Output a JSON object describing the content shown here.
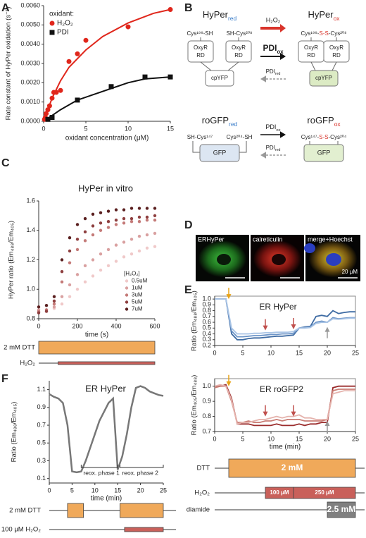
{
  "panels": [
    "A",
    "B",
    "C",
    "D",
    "E",
    "F"
  ],
  "chart_data": [
    {
      "type": "scatter",
      "xlabel": "oxidant concentration (μM)",
      "ylabel": "Rate constant of HyPer oxidation (s⁻¹)",
      "xlim": [
        0,
        15
      ],
      "xticks": [
        0,
        5,
        10,
        15
      ],
      "ylim": [
        0,
        0.006
      ],
      "yticks": [
        {
          "value": 0,
          "label": "0.0000"
        },
        {
          "value": 0.001,
          "label": "0.0010"
        },
        {
          "value": 0.002,
          "label": "0.0020"
        },
        {
          "value": 0.003,
          "label": "0.0030"
        },
        {
          "value": 0.004,
          "label": "0.0040"
        },
        {
          "value": 0.005,
          "label": "0.0050"
        },
        {
          "value": 0.006,
          "label": "0.0060"
        }
      ],
      "legend_title": "oxidant:",
      "legend": "upper left",
      "series": [
        {
          "name": "H₂O₂",
          "color": "#e0261b",
          "marker": "circle",
          "x": [
            0.1,
            0.2,
            0.3,
            0.5,
            0.7,
            1,
            1.2,
            1.5,
            2,
            3,
            4,
            5,
            10,
            15
          ],
          "values": [
            0.0001,
            0.0002,
            0.0004,
            0.0006,
            0.0008,
            0.0012,
            0.0015,
            0.0015,
            0.0016,
            0.0031,
            0.0035,
            0.0042,
            0.0049,
            0.0058
          ]
        },
        {
          "name": "PDI",
          "color": "#111111",
          "marker": "square",
          "x": [
            0.5,
            1,
            4,
            8,
            12,
            15
          ],
          "values": [
            0.0001,
            0.0002,
            0.0011,
            0.0018,
            0.0023,
            0.0023
          ]
        }
      ],
      "fits": [
        {
          "color": "#e0261b",
          "x": [
            0,
            0.5,
            1,
            2,
            3,
            5,
            7,
            10,
            13,
            15
          ],
          "values": [
            0,
            0.0006,
            0.0012,
            0.0021,
            0.0028,
            0.0037,
            0.0044,
            0.0051,
            0.0056,
            0.0058
          ]
        },
        {
          "color": "#111111",
          "x": [
            0,
            1,
            2,
            4,
            6,
            8,
            10,
            12,
            15
          ],
          "values": [
            0,
            0.0003,
            0.0006,
            0.0011,
            0.0014,
            0.0017,
            0.002,
            0.0022,
            0.0023
          ]
        }
      ]
    },
    {
      "type": "scatter",
      "title": "HyPer in vitro",
      "xlabel": "time (s)",
      "ylabel": "HyPer ratio (Em₄₈₈/Em₄₀₅)",
      "xlim": [
        0,
        600
      ],
      "xticks": [
        0,
        200,
        400,
        600
      ],
      "ylim": [
        0.8,
        1.6
      ],
      "yticks": [
        0.8,
        {
          "value": 1.0,
          "label": "1.0"
        },
        1.2,
        1.4,
        1.6
      ],
      "legend_title": "[H₂O₂]",
      "legend": "center right",
      "x": [
        0,
        40,
        80,
        120,
        160,
        200,
        240,
        280,
        320,
        360,
        400,
        440,
        480,
        520,
        560,
        600
      ],
      "series": [
        {
          "name": "0.5uM",
          "color": "#f0c9c9",
          "marker": "circle",
          "values": [
            0.86,
            0.86,
            0.87,
            0.9,
            0.95,
            1.0,
            1.05,
            1.09,
            1.13,
            1.16,
            1.19,
            1.22,
            1.24,
            1.26,
            1.28,
            1.29
          ]
        },
        {
          "name": "1uM",
          "color": "#d9a0a0",
          "marker": "circle",
          "values": [
            0.86,
            0.86,
            0.88,
            0.95,
            1.03,
            1.1,
            1.16,
            1.2,
            1.24,
            1.27,
            1.3,
            1.32,
            1.34,
            1.36,
            1.37,
            1.38
          ]
        },
        {
          "name": "3uM",
          "color": "#c47a78",
          "marker": "circle",
          "values": [
            0.85,
            0.86,
            0.9,
            1.05,
            1.18,
            1.27,
            1.33,
            1.37,
            1.4,
            1.42,
            1.44,
            1.45,
            1.46,
            1.46,
            1.47,
            1.47
          ]
        },
        {
          "name": "5uM",
          "color": "#8e3f3f",
          "marker": "circle",
          "values": [
            0.84,
            0.85,
            0.92,
            1.12,
            1.26,
            1.34,
            1.39,
            1.43,
            1.45,
            1.46,
            1.47,
            1.48,
            1.48,
            1.49,
            1.49,
            1.5
          ]
        },
        {
          "name": "7uM",
          "color": "#5a1f1f",
          "marker": "circle",
          "values": [
            0.88,
            0.89,
            0.95,
            1.2,
            1.35,
            1.44,
            1.48,
            1.51,
            1.52,
            1.53,
            1.54,
            1.54,
            1.55,
            1.55,
            1.55,
            1.55
          ]
        }
      ],
      "bars": [
        {
          "label": "2 mM DTT",
          "segments": [
            {
              "start": 0,
              "end": 600,
              "color": "#f0a95a"
            }
          ]
        },
        {
          "label": "H₂O₂",
          "segments": [
            {
              "start": 100,
              "end": 600,
              "color": "#c9605a"
            }
          ]
        }
      ]
    },
    {
      "type": "line",
      "title": "ER HyPer",
      "ylabel": "Ratio (Em₄₈₈/Em₄₀₅)",
      "xlim": [
        0,
        25
      ],
      "xticks": [
        0,
        5,
        10,
        15,
        20,
        25
      ],
      "ylim": [
        0.2,
        1.05
      ],
      "yticks": [
        0.2,
        0.3,
        0.4,
        0.5,
        0.6,
        0.7,
        0.8,
        0.9,
        {
          "value": 1.0,
          "label": "1.0"
        }
      ],
      "x": [
        0,
        1,
        2,
        3,
        4,
        5,
        6,
        7,
        8,
        9,
        10,
        11,
        12,
        13,
        14,
        15,
        16,
        17,
        18,
        19,
        20,
        21,
        22,
        23,
        24,
        25
      ],
      "series": [
        {
          "color": "#3e6ba3",
          "values": [
            1.0,
            1.0,
            1.0,
            0.4,
            0.3,
            0.3,
            0.32,
            0.33,
            0.33,
            0.34,
            0.35,
            0.36,
            0.36,
            0.37,
            0.38,
            0.5,
            0.52,
            0.53,
            0.7,
            0.72,
            0.7,
            0.8,
            0.75,
            0.77,
            0.78,
            0.78
          ]
        },
        {
          "color": "#6d95c8",
          "values": [
            1.0,
            1.0,
            1.0,
            0.45,
            0.35,
            0.35,
            0.36,
            0.37,
            0.37,
            0.38,
            0.39,
            0.39,
            0.4,
            0.4,
            0.41,
            0.5,
            0.51,
            0.52,
            0.6,
            0.62,
            0.6,
            0.68,
            0.66,
            0.67,
            0.68,
            0.68
          ]
        },
        {
          "color": "#a9c4e5",
          "values": [
            1.0,
            1.0,
            1.0,
            0.5,
            0.4,
            0.4,
            0.4,
            0.41,
            0.41,
            0.42,
            0.42,
            0.43,
            0.43,
            0.43,
            0.44,
            0.5,
            0.5,
            0.51,
            0.58,
            0.6,
            0.6,
            0.66,
            0.65,
            0.66,
            0.67,
            0.67
          ]
        }
      ],
      "arrows": [
        {
          "x": 2.5,
          "y": 1.0,
          "direction": "down",
          "color": "#e8a317"
        },
        {
          "x": 9,
          "y": 0.46,
          "direction": "down",
          "color": "#c0504d"
        },
        {
          "x": 14,
          "y": 0.48,
          "direction": "down",
          "color": "#c0504d"
        },
        {
          "x": 20,
          "y": 0.52,
          "direction": "up",
          "color": "#999999"
        }
      ]
    },
    {
      "type": "line",
      "title": "ER roGFP2",
      "xlabel": "time (min)",
      "ylabel": "Ratio (Em₄₀₅/Em₄₈₈)",
      "xlim": [
        0,
        25
      ],
      "xticks": [
        0,
        5,
        10,
        15,
        20,
        25
      ],
      "ylim": [
        0.7,
        1.05
      ],
      "yticks": [
        0.7,
        0.8,
        0.9,
        {
          "value": 1.0,
          "label": "1.0"
        }
      ],
      "x": [
        0,
        1,
        2,
        3,
        4,
        5,
        6,
        7,
        8,
        9,
        10,
        11,
        12,
        13,
        14,
        15,
        16,
        17,
        18,
        19,
        20,
        21,
        22,
        23,
        24,
        25
      ],
      "series": [
        {
          "color": "#9b2d2d",
          "values": [
            1.0,
            1.0,
            1.01,
            0.92,
            0.75,
            0.75,
            0.75,
            0.74,
            0.74,
            0.74,
            0.74,
            0.75,
            0.74,
            0.74,
            0.74,
            0.75,
            0.74,
            0.75,
            0.75,
            0.76,
            0.76,
            0.99,
            1.0,
            1.0,
            1.0,
            1.0
          ]
        },
        {
          "color": "#c97c74",
          "values": [
            0.99,
            1.0,
            1.0,
            0.9,
            0.76,
            0.76,
            0.77,
            0.76,
            0.76,
            0.77,
            0.77,
            0.78,
            0.77,
            0.78,
            0.78,
            0.78,
            0.77,
            0.77,
            0.77,
            0.77,
            0.78,
            0.97,
            0.98,
            0.98,
            0.98,
            0.98
          ]
        },
        {
          "color": "#e5b3ad",
          "values": [
            1.0,
            1.01,
            1.0,
            0.91,
            0.75,
            0.76,
            0.76,
            0.77,
            0.78,
            0.78,
            0.79,
            0.8,
            0.79,
            0.8,
            0.8,
            0.81,
            0.79,
            0.79,
            0.78,
            0.78,
            0.78,
            0.95,
            0.96,
            0.97,
            0.97,
            0.97
          ]
        }
      ],
      "arrows": [
        {
          "x": 2.5,
          "y": 1.0,
          "direction": "down",
          "color": "#e8a317"
        },
        {
          "x": 9,
          "y": 0.8,
          "direction": "down",
          "color": "#c0504d"
        },
        {
          "x": 14,
          "y": 0.8,
          "direction": "down",
          "color": "#c0504d"
        },
        {
          "x": 20,
          "y": 0.77,
          "direction": "up",
          "color": "#999999"
        }
      ],
      "bars": [
        {
          "label": "DTT",
          "segments": [
            {
              "start": 2.5,
              "end": 25,
              "color": "#f0a95a",
              "text": "2 mM"
            }
          ]
        },
        {
          "label": "H₂O₂",
          "segments": [
            {
              "start": 9,
              "end": 14,
              "color": "#c9605a",
              "text": "100 μM"
            },
            {
              "start": 14,
              "end": 25,
              "color": "#c9605a",
              "text": "250 μM"
            }
          ]
        },
        {
          "label": "diamide",
          "segments": [
            {
              "start": 20,
              "end": 25,
              "color": "#808080",
              "text": "2.5 mM"
            }
          ]
        }
      ]
    },
    {
      "type": "line",
      "title": "ER HyPer",
      "xlabel": "time (min)",
      "ylabel": "Ratio (Em₄₈₈/Em₄₀₅)",
      "xlim": [
        0,
        25
      ],
      "xticks": [
        0,
        5,
        10,
        15,
        20,
        25
      ],
      "ylim": [
        0.05,
        1.2
      ],
      "yticks": [
        0.1,
        0.3,
        0.5,
        0.7,
        0.9,
        1.1
      ],
      "x": [
        0,
        1,
        2,
        3,
        4,
        5,
        6,
        7,
        8,
        9,
        10,
        11,
        12,
        13,
        14,
        15,
        16,
        17,
        18,
        19,
        20,
        21,
        22,
        23,
        24,
        25
      ],
      "series": [
        {
          "color": "#777777",
          "values": [
            1.05,
            1.02,
            1.0,
            0.95,
            0.7,
            0.18,
            0.17,
            0.18,
            0.3,
            0.45,
            0.6,
            0.75,
            0.85,
            0.95,
            1.0,
            0.2,
            0.35,
            0.6,
            0.9,
            1.12,
            1.14,
            1.12,
            1.08,
            1.06,
            1.04,
            1.03
          ]
        }
      ],
      "annotations": [
        {
          "text": "reox. phase 1",
          "start": 7,
          "end": 15
        },
        {
          "text": "reox. phase 2",
          "start": 15.5,
          "end": 25
        }
      ],
      "bars": [
        {
          "label": "2 mM DTT",
          "segments": [
            {
              "start": 4,
              "end": 7.5,
              "color": "#f0a95a"
            },
            {
              "start": 15.5,
              "end": 25,
              "color": "#f0a95a"
            }
          ]
        },
        {
          "label": "100 μM H₂O₂",
          "segments": [
            {
              "start": 16.5,
              "end": 25,
              "color": "#c9605a"
            }
          ]
        }
      ]
    }
  ],
  "diagram": {
    "hyper_red": {
      "name": "HyPer",
      "state": "red",
      "state_color": "#3a7dc9",
      "left": "Cys¹⁹⁹-SH",
      "right": "SH-Cys²⁰⁸",
      "domain_left": [
        "OxyR",
        "RD"
      ],
      "domain_right": [
        "OxyR",
        "RD"
      ],
      "core": "cpYFP",
      "core_color": "#ffffff"
    },
    "hyper_ox": {
      "name": "HyPer",
      "state": "ox",
      "state_color": "#d9342b",
      "bond": [
        "Cys¹⁹⁹-",
        "S-S",
        "-Cys²⁰⁸"
      ],
      "bond_color": "#d9342b",
      "domain_left": [
        "OxyR",
        "RD"
      ],
      "domain_right": [
        "OxyR",
        "RD"
      ],
      "core": "cpYFP",
      "core_color": "#dcebc4"
    },
    "hyper_arrows": {
      "forward": "H₂O₂",
      "forward2": {
        "name": "PDI",
        "state": "ox"
      },
      "back": {
        "name": "PDI",
        "state": "red"
      }
    },
    "rogfp_red": {
      "name": "roGFP",
      "state": "red",
      "state_color": "#3a7dc9",
      "left": "SH-Cys¹⁴⁷",
      "right": "Cys²⁰⁴-SH",
      "core": "GFP",
      "core_color": "#dce6f2"
    },
    "rogfp_ox": {
      "name": "roGFP",
      "state": "ox",
      "state_color": "#d9342b",
      "bond": [
        "Cys¹⁴⁷-",
        "S-S",
        "-Cys²⁰⁴"
      ],
      "bond_color": "#d9342b",
      "core": "GFP",
      "core_color": "#e2efd0"
    },
    "rogfp_arrows": {
      "forward": {
        "name": "PDI",
        "state": "ox"
      },
      "back": {
        "name": "PDI",
        "state": "red"
      }
    }
  },
  "micrographs": {
    "labels": [
      "ERHyPer",
      "calreticulin",
      "merge+Hoechst"
    ],
    "scale_bar": "20 μM"
  }
}
